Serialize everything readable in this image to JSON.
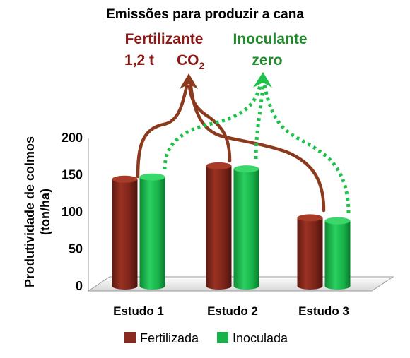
{
  "chart_data": {
    "type": "bar",
    "title": "Emissões para produzir a cana",
    "ylabel_line1": "Produtividade de colmos",
    "ylabel_line2": "(ton/ha)",
    "xlabel": "",
    "ylim": [
      0,
      200
    ],
    "yticks": [
      "0",
      "50",
      "100",
      "150",
      "200"
    ],
    "categories": [
      "Estudo 1",
      "Estudo 2",
      "Estudo 3"
    ],
    "series": [
      {
        "name": "Fertilizada",
        "color": "#8b2a1e",
        "values": [
          144,
          162,
          92
        ]
      },
      {
        "name": "Inoculada",
        "color": "#19b24a",
        "values": [
          147,
          158,
          88
        ]
      }
    ],
    "legend_position": "bottom",
    "annotations": {
      "fertilizer_label": "Fertilizante",
      "fertilizer_amount": "1,2 t",
      "fertilizer_gas": "CO",
      "fertilizer_gas_subscript": "2",
      "inoculant_label": "Inoculante",
      "inoculant_amount": "zero"
    },
    "colors": {
      "annotation_red": "#8b1a16",
      "annotation_green": "#238a2c",
      "arrow_red": "#8b3a1e",
      "arrow_green": "#1ec24a"
    }
  }
}
